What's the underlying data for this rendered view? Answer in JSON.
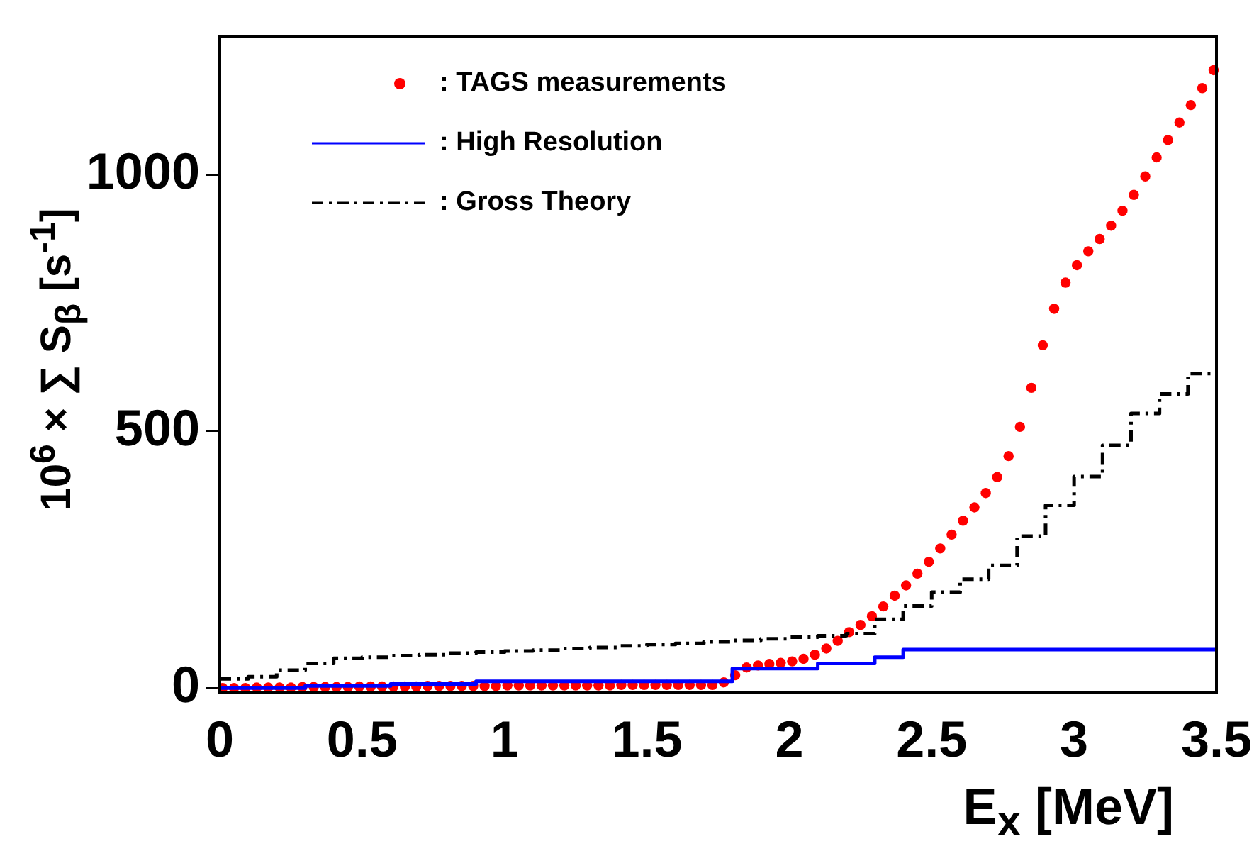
{
  "chart_data": {
    "type": "scatter",
    "xlabel": "E$_{x}$ [MeV]",
    "ylabel": "10$^{6}$ × ∑ S$_{β}$ [s$^{-1}$]",
    "xlim": [
      0,
      3.5
    ],
    "xticks": [
      0,
      0.5,
      1,
      1.5,
      2,
      2.5,
      3,
      3.5
    ],
    "ylim": [
      -8,
      1270
    ],
    "yticks": [
      0,
      500,
      1000
    ],
    "grid": false,
    "legend": "top left",
    "series": [
      {
        "name": ": TAGS measurements",
        "color": "#ff0000",
        "marker": "circle",
        "x": [
          0.01,
          0.05,
          0.09,
          0.13,
          0.17,
          0.21,
          0.25,
          0.29,
          0.33,
          0.37,
          0.41,
          0.45,
          0.49,
          0.53,
          0.57,
          0.61,
          0.65,
          0.69,
          0.73,
          0.77,
          0.81,
          0.85,
          0.89,
          0.93,
          0.97,
          1.01,
          1.05,
          1.09,
          1.13,
          1.17,
          1.21,
          1.25,
          1.29,
          1.33,
          1.37,
          1.41,
          1.45,
          1.49,
          1.53,
          1.57,
          1.61,
          1.65,
          1.69,
          1.73,
          1.77,
          1.81,
          1.85,
          1.89,
          1.93,
          1.97,
          2.01,
          2.05,
          2.09,
          2.13,
          2.17,
          2.21,
          2.25,
          2.29,
          2.33,
          2.37,
          2.41,
          2.45,
          2.49,
          2.53,
          2.57,
          2.61,
          2.65,
          2.69,
          2.73,
          2.77,
          2.81,
          2.85,
          2.89,
          2.93,
          2.97,
          3.01,
          3.05,
          3.09,
          3.13,
          3.17,
          3.21,
          3.25,
          3.29,
          3.33,
          3.37,
          3.41,
          3.45,
          3.49
        ],
        "values": [
          0,
          0,
          0,
          1,
          1,
          1,
          1,
          2,
          2,
          2,
          2,
          2,
          3,
          3,
          3,
          3,
          3,
          3,
          4,
          4,
          4,
          4,
          4,
          4,
          4,
          5,
          5,
          5,
          5,
          5,
          5,
          5,
          5,
          5,
          5,
          6,
          6,
          6,
          6,
          6,
          6,
          6,
          6,
          6,
          11,
          25,
          40,
          44,
          47,
          49,
          52,
          57,
          65,
          77,
          92,
          109,
          123,
          140,
          159,
          180,
          200,
          223,
          246,
          272,
          299,
          326,
          352,
          380,
          411,
          452,
          509,
          585,
          668,
          739,
          790,
          824,
          851,
          875,
          901,
          930,
          961,
          997,
          1034,
          1068,
          1102,
          1136,
          1169,
          1204
        ]
      },
      {
        "name": ": High Resolution",
        "type": "step",
        "color": "#0000ff",
        "line_style": "solid",
        "marker": "none",
        "x": [
          0,
          0.3,
          0.6,
          0.9,
          1.8,
          2.1,
          2.3,
          2.4,
          3.5
        ],
        "values": [
          0,
          4,
          8,
          13,
          38,
          48,
          60,
          75,
          75
        ]
      },
      {
        "name": ": Gross Theory",
        "type": "step",
        "color": "#000000",
        "line_style": "dashed",
        "marker": "none",
        "x": [
          0,
          0.1,
          0.2,
          0.3,
          0.4,
          0.5,
          0.6,
          0.7,
          0.8,
          0.9,
          1.0,
          1.1,
          1.2,
          1.3,
          1.4,
          1.5,
          1.6,
          1.7,
          1.8,
          1.9,
          2.0,
          2.1,
          2.2,
          2.3,
          2.4,
          2.5,
          2.6,
          2.7,
          2.8,
          2.9,
          3.0,
          3.1,
          3.2,
          3.3,
          3.4,
          3.5
        ],
        "values": [
          18,
          22,
          35,
          48,
          58,
          60,
          63,
          65,
          68,
          70,
          72,
          74,
          77,
          79,
          82,
          85,
          87,
          90,
          93,
          96,
          99,
          102,
          106,
          134,
          160,
          187,
          212,
          239,
          296,
          356,
          412,
          473,
          535,
          573,
          613,
          613
        ]
      }
    ]
  }
}
